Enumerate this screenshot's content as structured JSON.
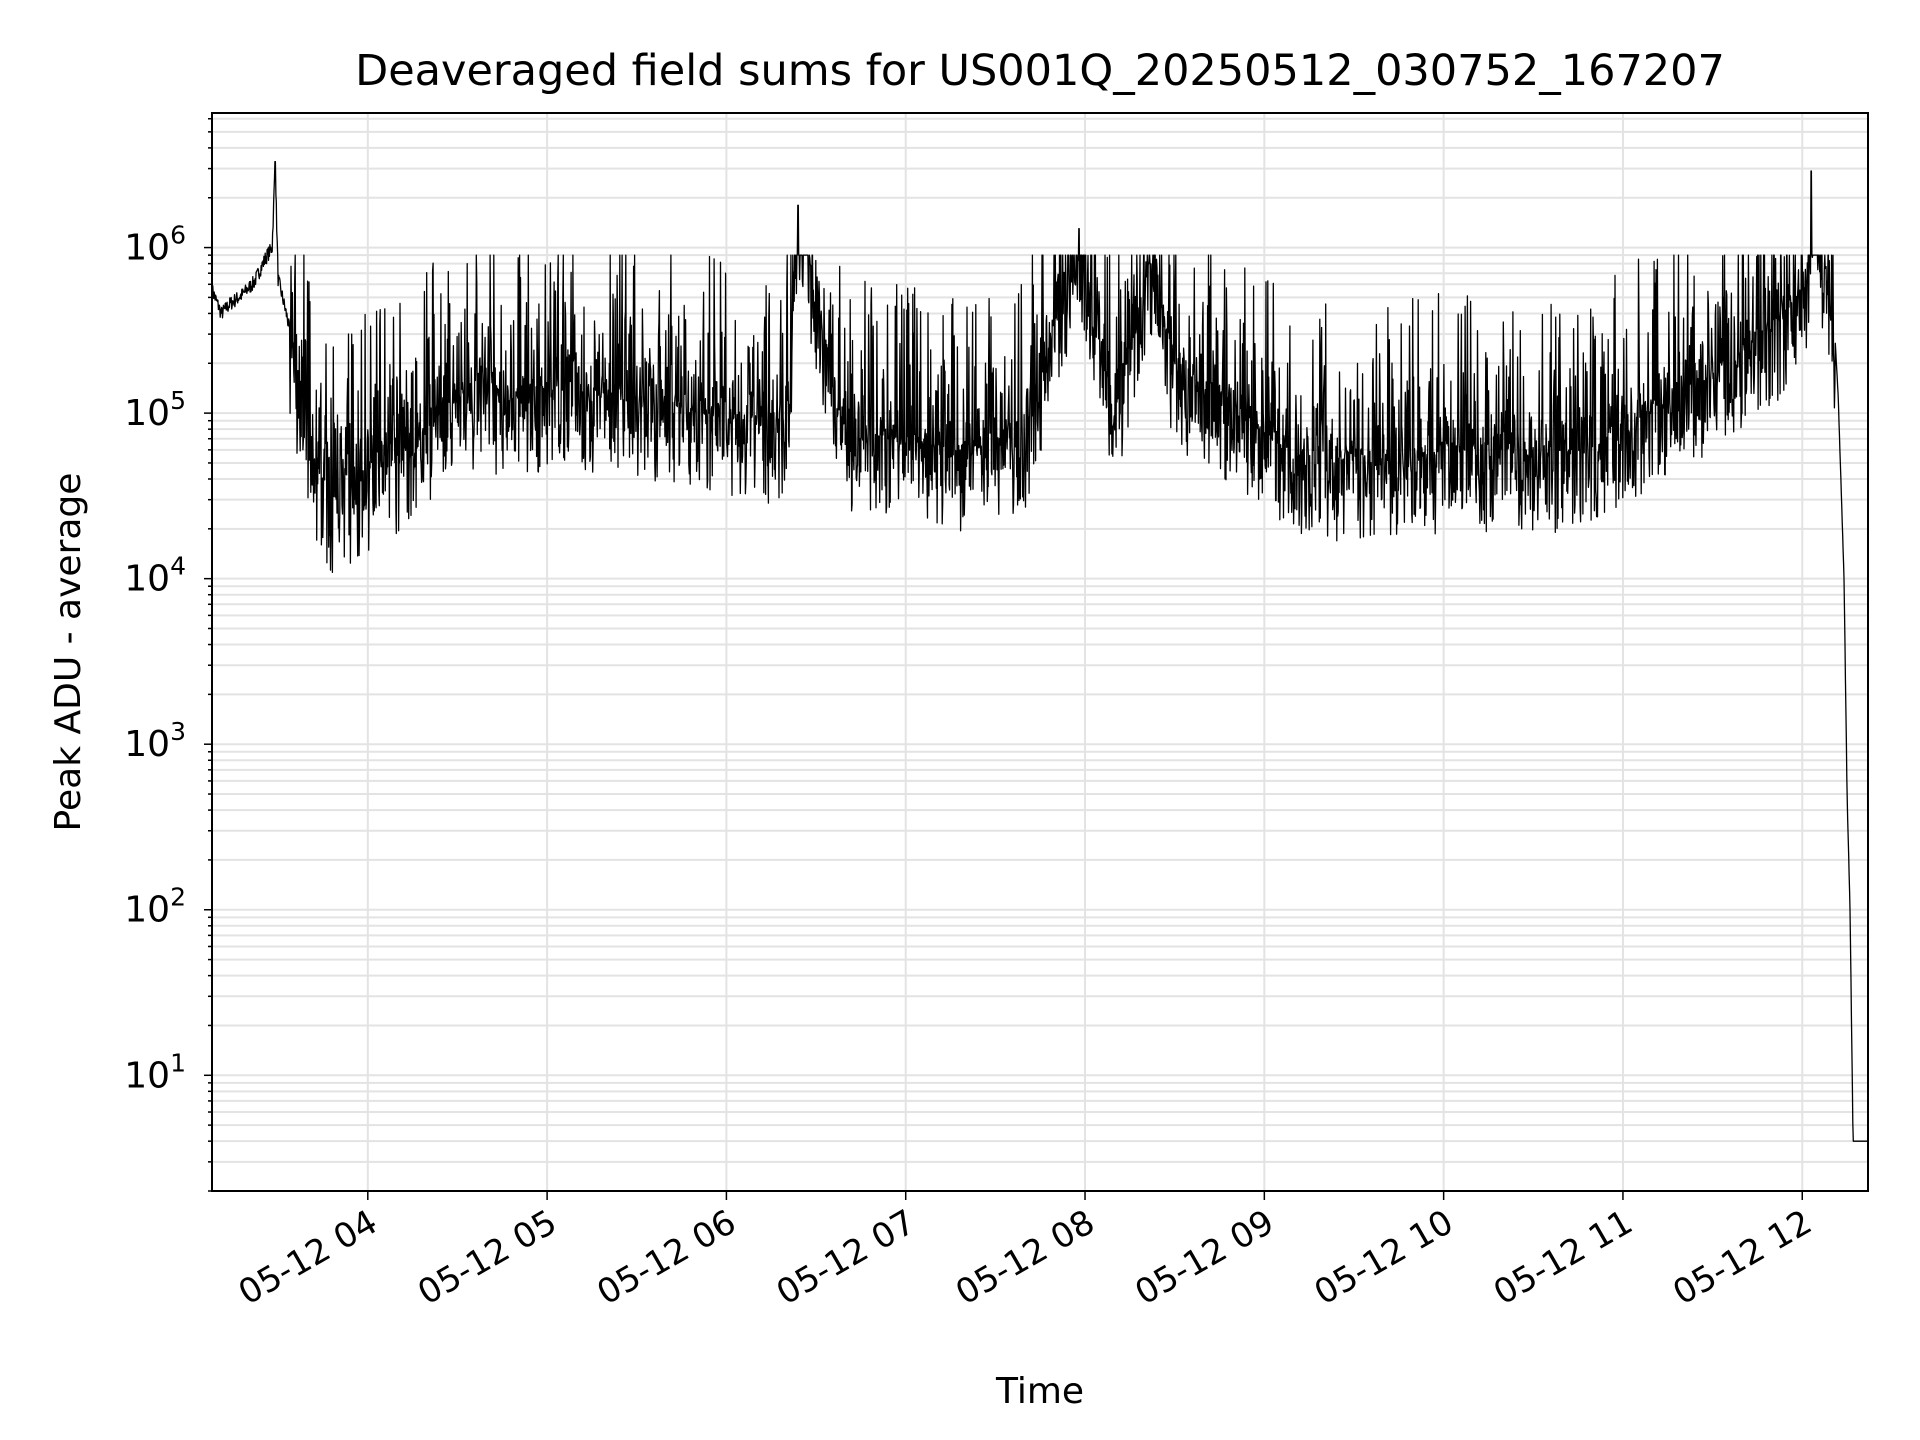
{
  "colors": {
    "line": "#000000",
    "grid": "#e3e3e3",
    "background": "#ffffff",
    "axes": "#000000"
  },
  "chart_data": {
    "type": "line",
    "title": "Deaveraged field sums for US001Q_20250512_030752_167207",
    "xlabel": "Time",
    "ylabel": "Peak ADU - average",
    "yscale": "log",
    "ylim": [
      2,
      6500000
    ],
    "xlim": [
      "2025-05-12 03:07:52",
      "2025-05-12 12:22:00"
    ],
    "xtick_labels": [
      "05-12 04",
      "05-12 05",
      "05-12 06",
      "05-12 07",
      "05-12 08",
      "05-12 09",
      "05-12 10",
      "05-12 11",
      "05-12 12"
    ],
    "xtick_times": [
      "2025-05-12 04:00",
      "2025-05-12 05:00",
      "2025-05-12 06:00",
      "2025-05-12 07:00",
      "2025-05-12 08:00",
      "2025-05-12 09:00",
      "2025-05-12 10:00",
      "2025-05-12 11:00",
      "2025-05-12 12:00"
    ],
    "ytick_labels": [
      {
        "base": "10",
        "exp": "1",
        "value": 10
      },
      {
        "base": "10",
        "exp": "2",
        "value": 100
      },
      {
        "base": "10",
        "exp": "3",
        "value": 1000
      },
      {
        "base": "10",
        "exp": "4",
        "value": 10000
      },
      {
        "base": "10",
        "exp": "5",
        "value": 100000
      },
      {
        "base": "10",
        "exp": "6",
        "value": 1000000
      }
    ],
    "grid": "major-and-minor",
    "series": [
      {
        "points": [
          [
            "2025-05-12 03:08",
            550000
          ],
          [
            "2025-05-12 03:11",
            400000
          ],
          [
            "2025-05-12 03:14",
            460000
          ],
          [
            "2025-05-12 03:18",
            520000
          ],
          [
            "2025-05-12 03:22",
            620000
          ],
          [
            "2025-05-12 03:26",
            880000
          ],
          [
            "2025-05-12 03:28",
            1000000
          ],
          [
            "2025-05-12 03:29",
            3300000
          ],
          [
            "2025-05-12 03:30",
            650000
          ],
          [
            "2025-05-12 03:33",
            380000
          ],
          [
            "2025-05-12 03:36",
            200000
          ],
          [
            "2025-05-12 03:40",
            90000
          ],
          [
            "2025-05-12 03:44",
            42000
          ],
          [
            "2025-05-12 03:48",
            32000
          ],
          [
            "2025-05-12 03:52",
            36000
          ],
          [
            "2025-05-12 04:00",
            48000
          ],
          [
            "2025-05-12 04:10",
            60000
          ],
          [
            "2025-05-12 04:20",
            90000
          ],
          [
            "2025-05-12 04:30",
            130000
          ],
          [
            "2025-05-12 04:45",
            140000
          ],
          [
            "2025-05-12 05:00",
            150000
          ],
          [
            "2025-05-12 05:15",
            140000
          ],
          [
            "2025-05-12 05:30",
            130000
          ],
          [
            "2025-05-12 05:45",
            120000
          ],
          [
            "2025-05-12 06:00",
            100000
          ],
          [
            "2025-05-12 06:20",
            90000
          ],
          [
            "2025-05-12 06:24",
            1800000
          ],
          [
            "2025-05-12 06:40",
            80000
          ],
          [
            "2025-05-12 07:00",
            70000
          ],
          [
            "2025-05-12 07:20",
            60000
          ],
          [
            "2025-05-12 07:40",
            80000
          ],
          [
            "2025-05-12 07:58",
            1300000
          ],
          [
            "2025-05-12 08:10",
            110000
          ],
          [
            "2025-05-12 08:22",
            900000
          ],
          [
            "2025-05-12 08:30",
            200000
          ],
          [
            "2025-05-12 08:50",
            110000
          ],
          [
            "2025-05-12 09:10",
            60000
          ],
          [
            "2025-05-12 09:30",
            55000
          ],
          [
            "2025-05-12 09:50",
            60000
          ],
          [
            "2025-05-12 10:10",
            65000
          ],
          [
            "2025-05-12 10:30",
            60000
          ],
          [
            "2025-05-12 10:50",
            65000
          ],
          [
            "2025-05-12 11:10",
            120000
          ],
          [
            "2025-05-12 11:30",
            180000
          ],
          [
            "2025-05-12 11:50",
            350000
          ],
          [
            "2025-05-12 12:02",
            650000
          ],
          [
            "2025-05-12 12:03",
            2900000
          ],
          [
            "2025-05-12 12:05",
            1000000
          ],
          [
            "2025-05-12 12:10",
            600000
          ],
          [
            "2025-05-12 12:12",
            130000
          ],
          [
            "2025-05-12 12:14",
            10000
          ],
          [
            "2025-05-12 12:15",
            500
          ],
          [
            "2025-05-12 12:16",
            100
          ],
          [
            "2025-05-12 12:17",
            4
          ],
          [
            "2025-05-12 12:22",
            4
          ]
        ]
      }
    ]
  }
}
